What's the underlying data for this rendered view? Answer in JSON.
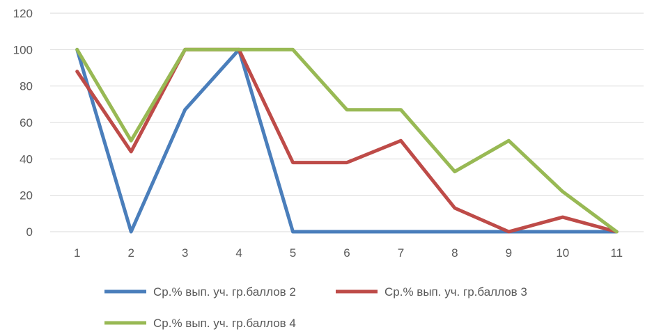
{
  "chart_data": {
    "type": "line",
    "title": "",
    "xlabel": "",
    "ylabel": "",
    "categories": [
      "1",
      "2",
      "3",
      "4",
      "5",
      "6",
      "7",
      "8",
      "9",
      "10",
      "11"
    ],
    "ylim": [
      0,
      120
    ],
    "yticks": [
      0,
      20,
      40,
      60,
      80,
      100,
      120
    ],
    "grid": true,
    "legend_position": "bottom",
    "series": [
      {
        "name": "Ср.% вып. уч. гр.баллов 2",
        "color": "#4a7ebb",
        "values": [
          100,
          0,
          67,
          100,
          0,
          0,
          0,
          0,
          0,
          0,
          0
        ]
      },
      {
        "name": "Ср.% вып. уч. гр.баллов 3",
        "color": "#be4b48",
        "values": [
          88,
          44,
          100,
          100,
          38,
          38,
          50,
          13,
          0,
          8,
          0
        ]
      },
      {
        "name": "Ср.% вып. уч. гр.баллов 4",
        "color": "#98b954",
        "values": [
          100,
          50,
          100,
          100,
          100,
          67,
          67,
          33,
          50,
          22,
          0
        ]
      }
    ]
  }
}
